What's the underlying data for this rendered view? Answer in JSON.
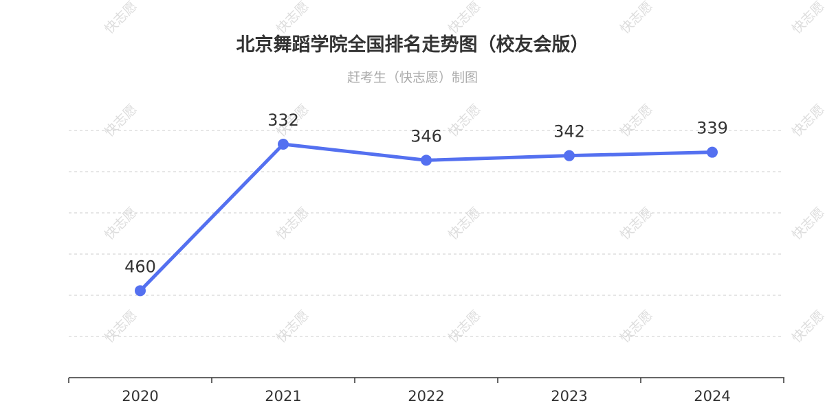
{
  "title": "北京舞蹈学院全国排名走势图（校友会版）",
  "subtitle": "赶考生（快志愿）制图",
  "watermark": "快志愿",
  "colors": {
    "line": "#5470f0",
    "grid": "#cccccc",
    "axis": "#333333",
    "title": "#333333",
    "subtitle": "#aaaaaa"
  },
  "chart_data": {
    "type": "line",
    "title": "北京舞蹈学院全国排名走势图（校友会版）",
    "subtitle": "赶考生（快志愿）制图",
    "categories": [
      "2020",
      "2021",
      "2022",
      "2023",
      "2024"
    ],
    "series": [
      {
        "values": [
          460,
          332,
          346,
          342,
          339
        ]
      }
    ],
    "y_axis": {
      "inverted": true,
      "labels_visible": false,
      "min": 320,
      "max": 500
    },
    "grid": "dashed-horizontal",
    "data_labels": true,
    "legend": "none"
  }
}
